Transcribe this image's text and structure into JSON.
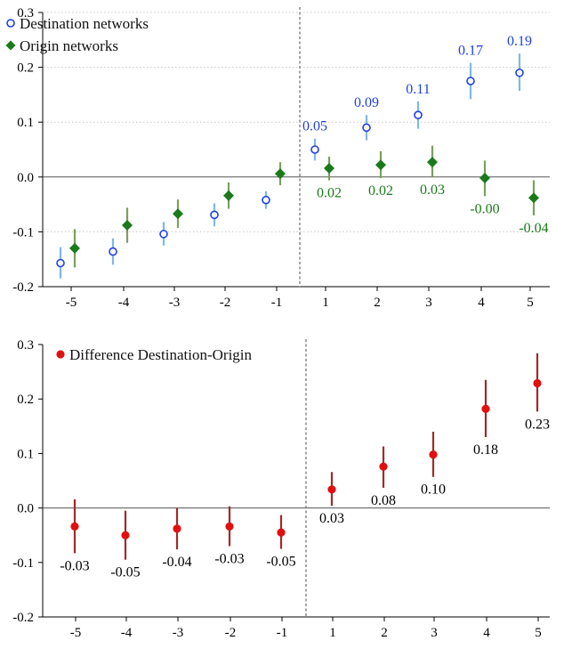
{
  "colors": {
    "destination": "#1f3fe6",
    "destination_ci": "#7fb7e8",
    "origin": "#1a7a1a",
    "origin_ci": "#7aa05a",
    "difference": "#e01010",
    "difference_ci": "#a02a2a",
    "axis": "#000000",
    "grid": "#c8c8c8",
    "zero_line": "#555555",
    "event_line": "#777777",
    "label_black": "#000000"
  },
  "chart_data": [
    {
      "type": "scatter",
      "title": "",
      "xlabel": "",
      "ylabel": "",
      "x_ticks": [
        "-5",
        "-4",
        "-3",
        "-2",
        "-1",
        "1",
        "2",
        "3",
        "4",
        "5"
      ],
      "y_ticks": [
        "0.3",
        "0.2",
        "0.1",
        "0.0",
        "-0.1",
        "-0.2"
      ],
      "ylim": [
        -0.2,
        0.3
      ],
      "grid": "horizontal dotted",
      "event_line": "between -1 and 1",
      "legend_placement": "top-left",
      "series": [
        {
          "name": "Destination networks",
          "marker": "open-circle",
          "x": [
            -5,
            -4,
            -3,
            -2,
            -1,
            1,
            2,
            3,
            4,
            5
          ],
          "y": [
            -0.157,
            -0.136,
            -0.104,
            -0.069,
            -0.042,
            0.05,
            0.09,
            0.113,
            0.175,
            0.19
          ],
          "ci_low": [
            -0.185,
            -0.16,
            -0.125,
            -0.09,
            -0.058,
            0.03,
            0.067,
            0.088,
            0.142,
            0.157
          ],
          "ci_high": [
            -0.128,
            -0.112,
            -0.082,
            -0.048,
            -0.026,
            0.07,
            0.113,
            0.138,
            0.208,
            0.225
          ],
          "labels": [
            "",
            "",
            "",
            "",
            "",
            "0.05",
            "0.09",
            "0.11",
            "0.17",
            "0.19"
          ]
        },
        {
          "name": "Origin networks",
          "marker": "diamond",
          "x": [
            -5,
            -4,
            -3,
            -2,
            -1,
            1,
            2,
            3,
            4,
            5
          ],
          "y": [
            -0.13,
            -0.088,
            -0.067,
            -0.034,
            0.006,
            0.016,
            0.022,
            0.027,
            -0.002,
            -0.038
          ],
          "ci_low": [
            -0.165,
            -0.12,
            -0.093,
            -0.058,
            -0.015,
            -0.006,
            -0.002,
            0.0,
            -0.035,
            -0.07
          ],
          "ci_high": [
            -0.095,
            -0.056,
            -0.041,
            -0.01,
            0.027,
            0.037,
            0.047,
            0.057,
            0.03,
            -0.006
          ],
          "labels": [
            "",
            "",
            "",
            "",
            "",
            "0.02",
            "0.02",
            "0.03",
            "-0.00",
            "-0.04"
          ]
        }
      ]
    },
    {
      "type": "scatter",
      "title": "",
      "xlabel": "",
      "ylabel": "",
      "x_ticks": [
        "-5",
        "-4",
        "-3",
        "-2",
        "-1",
        "1",
        "2",
        "3",
        "4",
        "5"
      ],
      "y_ticks": [
        "0.3",
        "0.2",
        "0.1",
        "0.0",
        "-0.1",
        "-0.2"
      ],
      "ylim": [
        -0.2,
        0.3
      ],
      "grid": "none",
      "event_line": "between -1 and 1",
      "legend_placement": "top-left",
      "series": [
        {
          "name": "Difference Destination-Origin",
          "marker": "filled-circle",
          "x": [
            -5,
            -4,
            -3,
            -2,
            -1,
            1,
            2,
            3,
            4,
            5
          ],
          "y": [
            -0.034,
            -0.05,
            -0.038,
            -0.034,
            -0.045,
            0.034,
            0.076,
            0.098,
            0.182,
            0.229
          ],
          "ci_low": [
            -0.083,
            -0.095,
            -0.076,
            -0.07,
            -0.075,
            0.004,
            0.037,
            0.057,
            0.13,
            0.177
          ],
          "ci_high": [
            0.016,
            -0.005,
            0.0,
            0.003,
            -0.013,
            0.066,
            0.113,
            0.14,
            0.235,
            0.284
          ],
          "labels": [
            "-0.03",
            "-0.05",
            "-0.04",
            "-0.03",
            "-0.05",
            "0.03",
            "0.08",
            "0.10",
            "0.18",
            "0.23"
          ]
        }
      ]
    }
  ]
}
